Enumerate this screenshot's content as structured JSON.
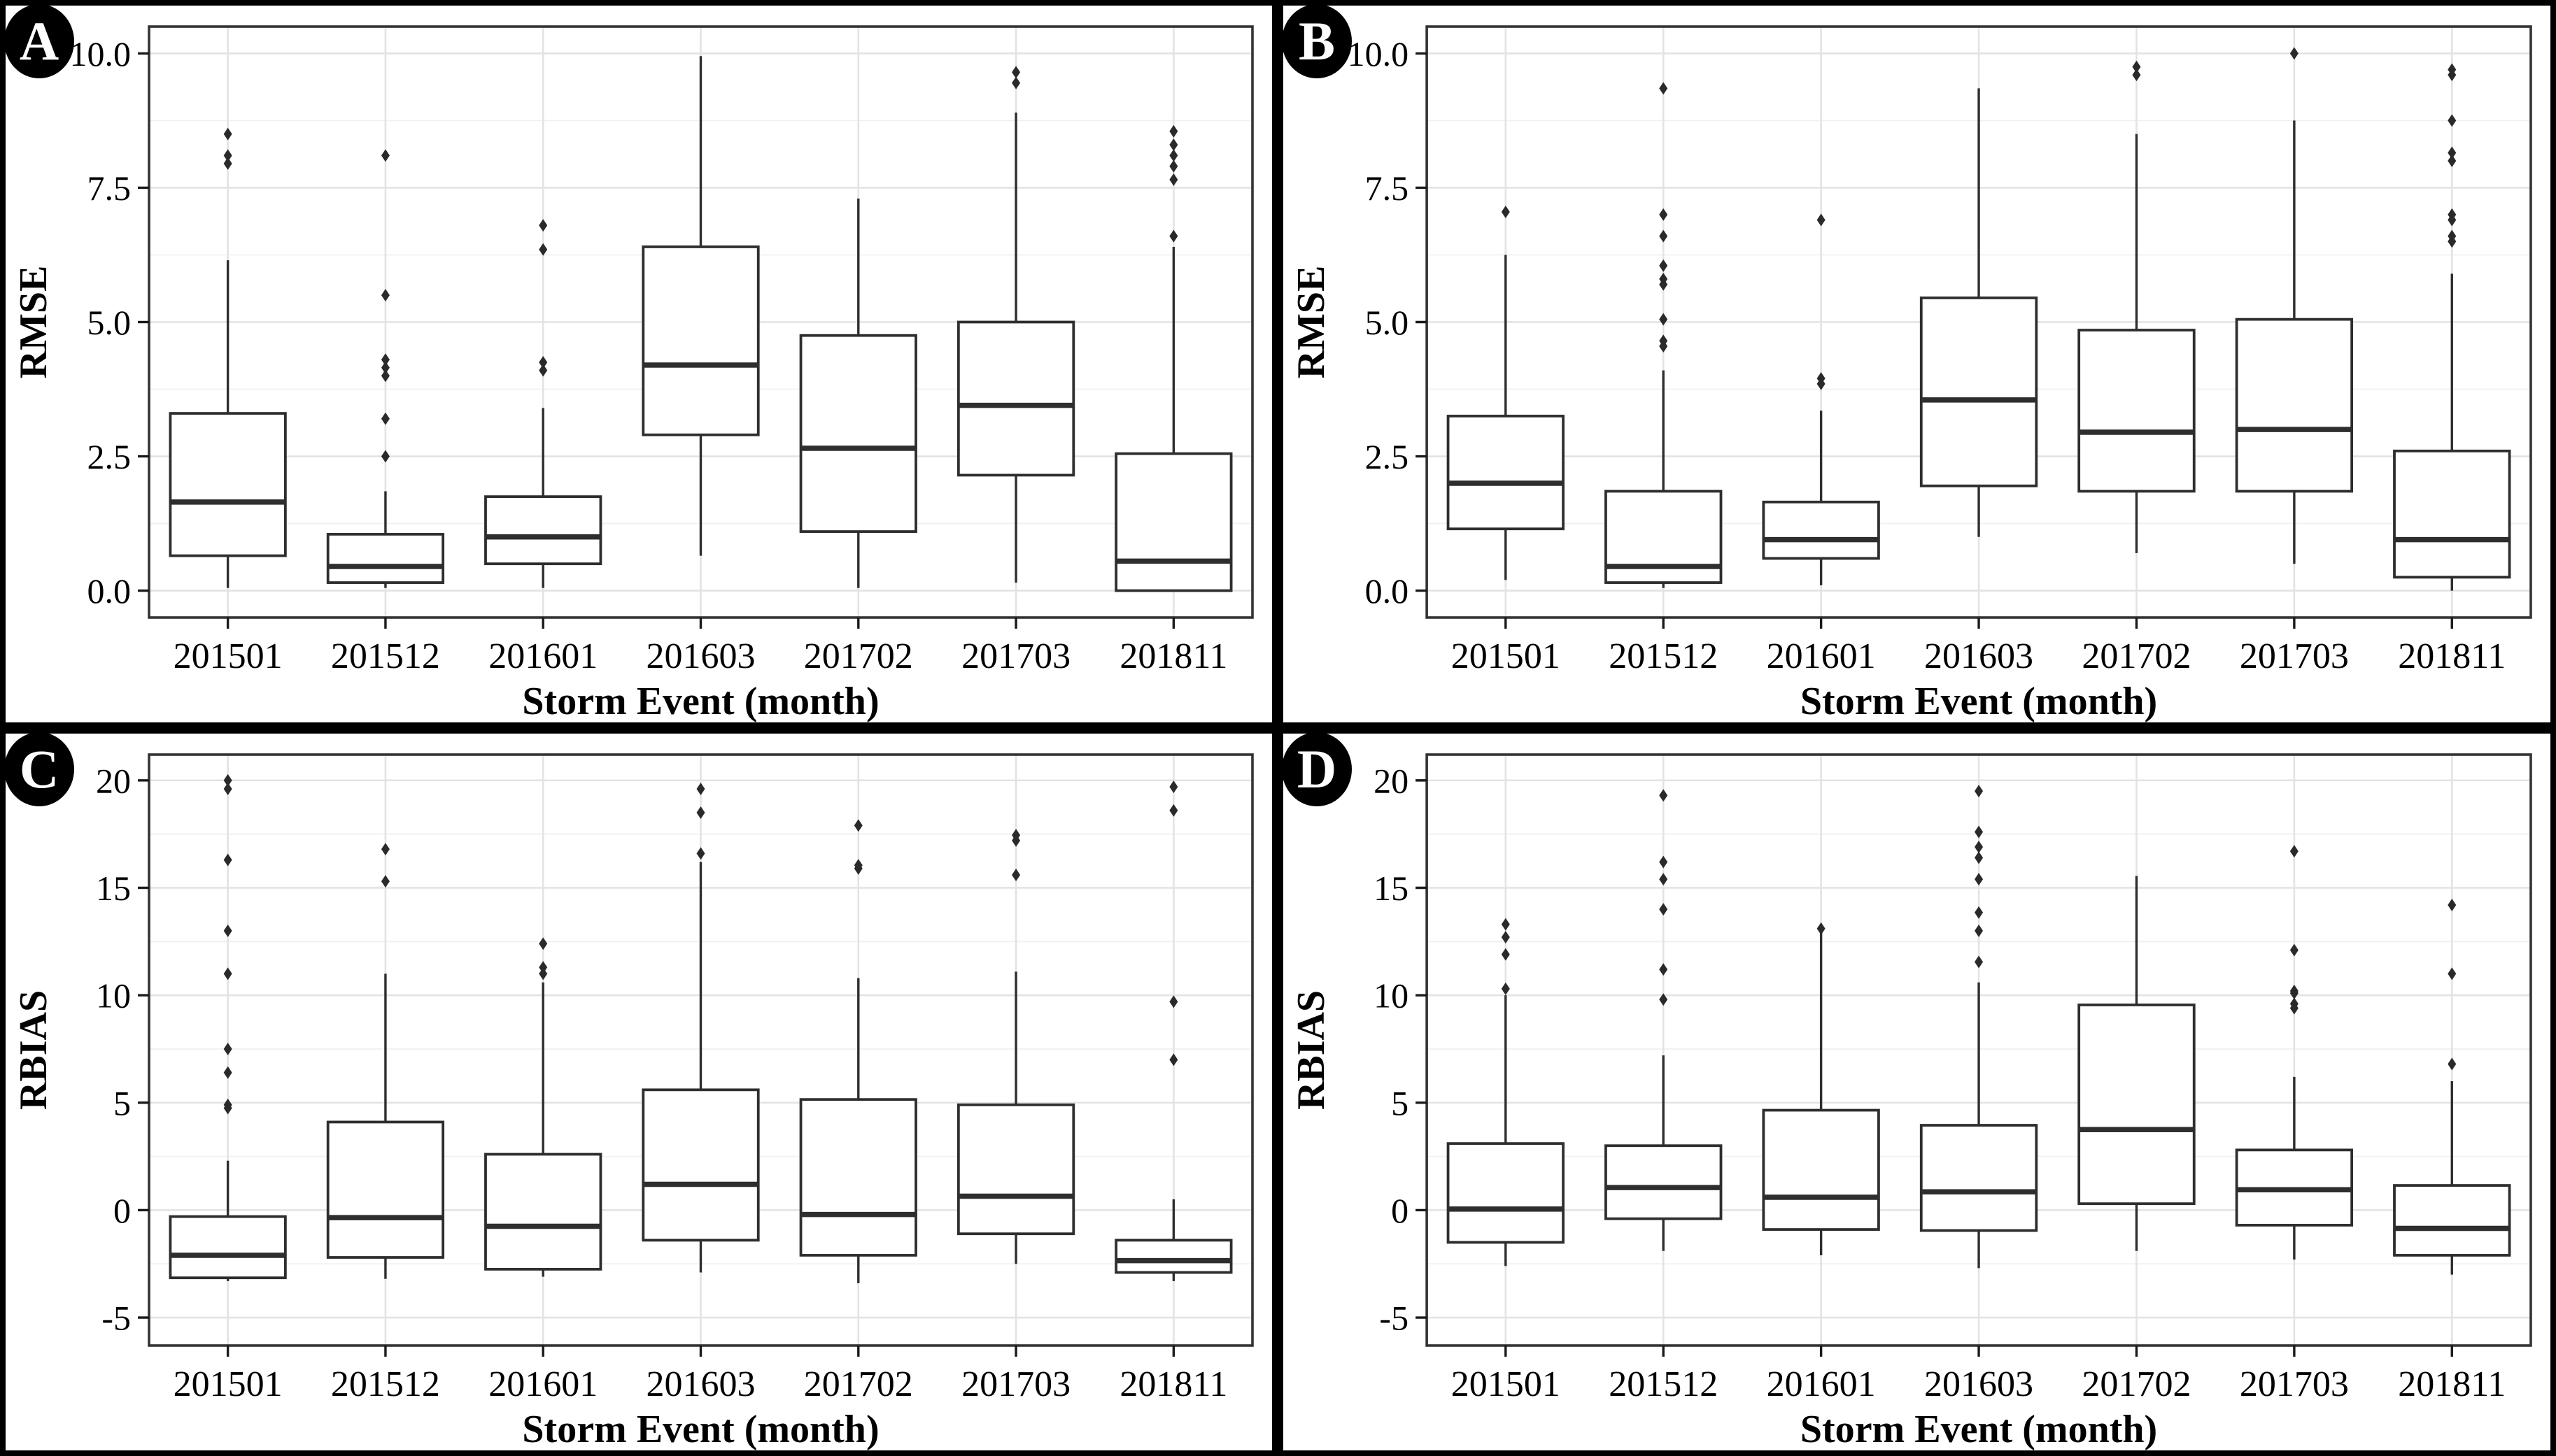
{
  "figure": {
    "xlabel": "Storm Event (month)",
    "categories": [
      "201501",
      "201512",
      "201601",
      "201603",
      "201702",
      "201703",
      "201811"
    ]
  },
  "style": {
    "background": "#ffffff",
    "outer_border": "#000000",
    "panel_border": "#333333",
    "grid_major": "#e3e3e3",
    "grid_minor": "#f0f0f0",
    "box_stroke": "#2e2e2e",
    "box_fill": "#ffffff",
    "outlier": "#2a2a2a",
    "text": "#000000",
    "badge_bg": "#000000",
    "badge_fg": "#ffffff"
  },
  "chart_data": [
    {
      "type": "boxplot",
      "panel": "A",
      "ylabel": "RMSE",
      "xlabel": "Storm Event (month)",
      "ylim": [
        -0.5,
        10.5
      ],
      "yticks": [
        {
          "v": 0.0,
          "label": "0.0"
        },
        {
          "v": 2.5,
          "label": "2.5"
        },
        {
          "v": 5.0,
          "label": "5.0"
        },
        {
          "v": 7.5,
          "label": "7.5"
        },
        {
          "v": 10.0,
          "label": "10.0"
        }
      ],
      "yminor": [
        1.25,
        3.75,
        6.25,
        8.75
      ],
      "categories": [
        "201501",
        "201512",
        "201601",
        "201603",
        "201702",
        "201703",
        "201811"
      ],
      "boxes": [
        {
          "category": "201501",
          "whisker_low": 0.05,
          "q1": 0.65,
          "median": 1.65,
          "q3": 3.3,
          "whisker_high": 6.15,
          "outliers": [
            7.95,
            8.1,
            8.5
          ]
        },
        {
          "category": "201512",
          "whisker_low": 0.05,
          "q1": 0.15,
          "median": 0.45,
          "q3": 1.05,
          "whisker_high": 1.85,
          "outliers": [
            2.5,
            3.2,
            4.0,
            4.15,
            4.3,
            5.5,
            8.1
          ]
        },
        {
          "category": "201601",
          "whisker_low": 0.05,
          "q1": 0.5,
          "median": 1.0,
          "q3": 1.75,
          "whisker_high": 3.4,
          "outliers": [
            4.1,
            4.25,
            6.35,
            6.8
          ]
        },
        {
          "category": "201603",
          "whisker_low": 0.65,
          "q1": 2.9,
          "median": 4.2,
          "q3": 6.4,
          "whisker_high": 9.95,
          "outliers": []
        },
        {
          "category": "201702",
          "whisker_low": 0.05,
          "q1": 1.1,
          "median": 2.65,
          "q3": 4.75,
          "whisker_high": 7.3,
          "outliers": []
        },
        {
          "category": "201703",
          "whisker_low": 0.15,
          "q1": 2.15,
          "median": 3.45,
          "q3": 5.0,
          "whisker_high": 8.9,
          "outliers": [
            9.45,
            9.65
          ]
        },
        {
          "category": "201811",
          "whisker_low": 0.0,
          "q1": 0.0,
          "median": 0.55,
          "q3": 2.55,
          "whisker_high": 6.4,
          "outliers": [
            6.6,
            7.65,
            7.9,
            8.1,
            8.3,
            8.55
          ]
        }
      ]
    },
    {
      "type": "boxplot",
      "panel": "B",
      "ylabel": "RMSE",
      "xlabel": "Storm Event (month)",
      "ylim": [
        -0.5,
        10.5
      ],
      "yticks": [
        {
          "v": 0.0,
          "label": "0.0"
        },
        {
          "v": 2.5,
          "label": "2.5"
        },
        {
          "v": 5.0,
          "label": "5.0"
        },
        {
          "v": 7.5,
          "label": "7.5"
        },
        {
          "v": 10.0,
          "label": "10.0"
        }
      ],
      "yminor": [
        1.25,
        3.75,
        6.25,
        8.75
      ],
      "categories": [
        "201501",
        "201512",
        "201601",
        "201603",
        "201702",
        "201703",
        "201811"
      ],
      "boxes": [
        {
          "category": "201501",
          "whisker_low": 0.2,
          "q1": 1.15,
          "median": 2.0,
          "q3": 3.25,
          "whisker_high": 6.25,
          "outliers": [
            7.05
          ]
        },
        {
          "category": "201512",
          "whisker_low": 0.05,
          "q1": 0.15,
          "median": 0.45,
          "q3": 1.85,
          "whisker_high": 4.1,
          "outliers": [
            4.55,
            4.65,
            5.05,
            5.7,
            5.8,
            6.05,
            6.6,
            7.0,
            9.35
          ]
        },
        {
          "category": "201601",
          "whisker_low": 0.1,
          "q1": 0.6,
          "median": 0.95,
          "q3": 1.65,
          "whisker_high": 3.35,
          "outliers": [
            3.85,
            3.95,
            6.9
          ]
        },
        {
          "category": "201603",
          "whisker_low": 1.0,
          "q1": 1.95,
          "median": 3.55,
          "q3": 5.45,
          "whisker_high": 9.35,
          "outliers": []
        },
        {
          "category": "201702",
          "whisker_low": 0.7,
          "q1": 1.85,
          "median": 2.95,
          "q3": 4.85,
          "whisker_high": 8.5,
          "outliers": [
            9.6,
            9.75
          ]
        },
        {
          "category": "201703",
          "whisker_low": 0.5,
          "q1": 1.85,
          "median": 3.0,
          "q3": 5.05,
          "whisker_high": 8.75,
          "outliers": [
            10.0
          ]
        },
        {
          "category": "201811",
          "whisker_low": 0.0,
          "q1": 0.25,
          "median": 0.95,
          "q3": 2.6,
          "whisker_high": 5.9,
          "outliers": [
            6.5,
            6.6,
            6.9,
            7.0,
            8.0,
            8.15,
            8.75,
            9.6,
            9.7
          ]
        }
      ]
    },
    {
      "type": "boxplot",
      "panel": "C",
      "ylabel": "RBIAS",
      "xlabel": "Storm Event (month)",
      "ylim": [
        -6.3,
        21.2
      ],
      "yticks": [
        {
          "v": -5,
          "label": "-5"
        },
        {
          "v": 0,
          "label": "0"
        },
        {
          "v": 5,
          "label": "5"
        },
        {
          "v": 10,
          "label": "10"
        },
        {
          "v": 15,
          "label": "15"
        },
        {
          "v": 20,
          "label": "20"
        }
      ],
      "yminor": [
        -2.5,
        2.5,
        7.5,
        12.5,
        17.5
      ],
      "categories": [
        "201501",
        "201512",
        "201601",
        "201603",
        "201702",
        "201703",
        "201811"
      ],
      "boxes": [
        {
          "category": "201501",
          "whisker_low": -3.3,
          "q1": -3.15,
          "median": -2.1,
          "q3": -0.3,
          "whisker_high": 2.3,
          "outliers": [
            4.75,
            4.9,
            6.4,
            7.5,
            11.0,
            13.0,
            16.3,
            19.6,
            20.0
          ]
        },
        {
          "category": "201512",
          "whisker_low": -3.2,
          "q1": -2.2,
          "median": -0.35,
          "q3": 4.1,
          "whisker_high": 11.0,
          "outliers": [
            15.3,
            16.8
          ]
        },
        {
          "category": "201601",
          "whisker_low": -3.1,
          "q1": -2.75,
          "median": -0.75,
          "q3": 2.6,
          "whisker_high": 10.6,
          "outliers": [
            11.0,
            11.3,
            12.4
          ]
        },
        {
          "category": "201603",
          "whisker_low": -2.9,
          "q1": -1.4,
          "median": 1.2,
          "q3": 5.6,
          "whisker_high": 16.2,
          "outliers": [
            16.6,
            18.5,
            19.6
          ]
        },
        {
          "category": "201702",
          "whisker_low": -3.4,
          "q1": -2.1,
          "median": -0.2,
          "q3": 5.15,
          "whisker_high": 10.8,
          "outliers": [
            15.9,
            16.05,
            17.9
          ]
        },
        {
          "category": "201703",
          "whisker_low": -2.5,
          "q1": -1.1,
          "median": 0.65,
          "q3": 4.9,
          "whisker_high": 11.1,
          "outliers": [
            15.6,
            17.2,
            17.45
          ]
        },
        {
          "category": "201811",
          "whisker_low": -3.3,
          "q1": -2.9,
          "median": -2.35,
          "q3": -1.4,
          "whisker_high": 0.5,
          "outliers": [
            7.0,
            9.7,
            18.6,
            19.7
          ]
        }
      ]
    },
    {
      "type": "boxplot",
      "panel": "D",
      "ylabel": "RBIAS",
      "xlabel": "Storm Event (month)",
      "ylim": [
        -6.3,
        21.2
      ],
      "yticks": [
        {
          "v": -5,
          "label": "-5"
        },
        {
          "v": 0,
          "label": "0"
        },
        {
          "v": 5,
          "label": "5"
        },
        {
          "v": 10,
          "label": "10"
        },
        {
          "v": 15,
          "label": "15"
        },
        {
          "v": 20,
          "label": "20"
        }
      ],
      "yminor": [
        -2.5,
        2.5,
        7.5,
        12.5,
        17.5
      ],
      "categories": [
        "201501",
        "201512",
        "201601",
        "201603",
        "201702",
        "201703",
        "201811"
      ],
      "boxes": [
        {
          "category": "201501",
          "whisker_low": -2.6,
          "q1": -1.5,
          "median": 0.05,
          "q3": 3.1,
          "whisker_high": 10.0,
          "outliers": [
            10.3,
            11.9,
            12.7,
            13.3
          ]
        },
        {
          "category": "201512",
          "whisker_low": -1.9,
          "q1": -0.4,
          "median": 1.05,
          "q3": 3.0,
          "whisker_high": 7.2,
          "outliers": [
            9.8,
            11.2,
            14.0,
            15.4,
            16.2,
            19.3
          ]
        },
        {
          "category": "201601",
          "whisker_low": -2.1,
          "q1": -0.9,
          "median": 0.6,
          "q3": 4.65,
          "whisker_high": 12.9,
          "outliers": [
            13.1
          ]
        },
        {
          "category": "201603",
          "whisker_low": -2.7,
          "q1": -0.95,
          "median": 0.85,
          "q3": 3.95,
          "whisker_high": 10.6,
          "outliers": [
            11.55,
            13.0,
            13.85,
            15.4,
            16.4,
            16.9,
            17.6,
            19.5
          ]
        },
        {
          "category": "201702",
          "whisker_low": -1.9,
          "q1": 0.3,
          "median": 3.75,
          "q3": 9.55,
          "whisker_high": 15.55,
          "outliers": []
        },
        {
          "category": "201703",
          "whisker_low": -2.3,
          "q1": -0.7,
          "median": 0.95,
          "q3": 2.8,
          "whisker_high": 6.2,
          "outliers": [
            9.4,
            9.6,
            10.1,
            10.2,
            12.1,
            16.7
          ]
        },
        {
          "category": "201811",
          "whisker_low": -3.0,
          "q1": -2.1,
          "median": -0.85,
          "q3": 1.15,
          "whisker_high": 6.0,
          "outliers": [
            6.8,
            11.0,
            14.2
          ]
        }
      ]
    }
  ]
}
